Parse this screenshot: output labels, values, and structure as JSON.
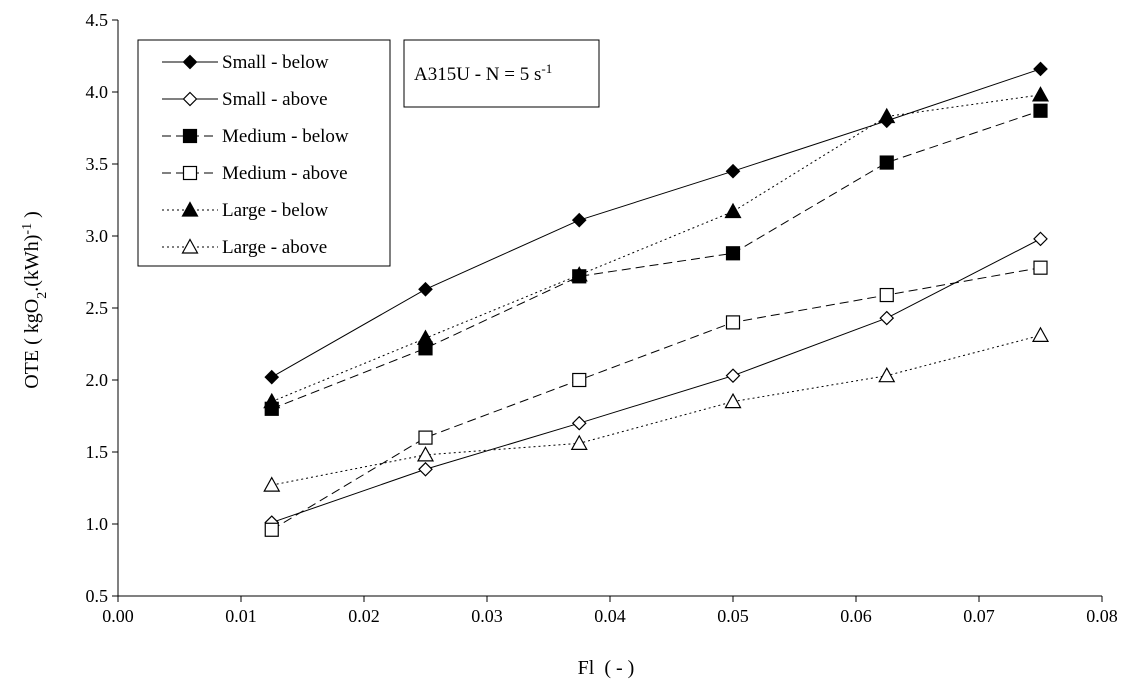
{
  "chart_data": {
    "type": "line",
    "xlabel": "Fl  ( - )",
    "ylabel_main": "OTE  ( kgO",
    "ylabel_sub2": "2",
    "ylabel_mid": ".(kWh)",
    "ylabel_sup": "-1",
    "ylabel_end": " )",
    "xlim": [
      0.0,
      0.08
    ],
    "ylim": [
      0.5,
      4.5
    ],
    "xticks": [
      0.0,
      0.01,
      0.02,
      0.03,
      0.04,
      0.05,
      0.06,
      0.07,
      0.08
    ],
    "yticks": [
      0.5,
      1.0,
      1.5,
      2.0,
      2.5,
      3.0,
      3.5,
      4.0,
      4.5
    ],
    "xtick_labels": [
      "0.00",
      "0.01",
      "0.02",
      "0.03",
      "0.04",
      "0.05",
      "0.06",
      "0.07",
      "0.08"
    ],
    "ytick_labels": [
      "0.5",
      "1.0",
      "1.5",
      "2.0",
      "2.5",
      "3.0",
      "3.5",
      "4.0",
      "4.5"
    ],
    "grid": false,
    "legend_position": "top-left",
    "annotation": {
      "main": "A315U - N = 5 s",
      "sup": "-1"
    },
    "x": [
      0.0125,
      0.025,
      0.0375,
      0.05,
      0.0625,
      0.075
    ],
    "series": [
      {
        "name": "Small - below",
        "marker": "diamond",
        "filled": true,
        "line": "solid",
        "values": [
          2.02,
          2.63,
          3.11,
          3.45,
          3.8,
          4.16
        ]
      },
      {
        "name": "Small - above",
        "marker": "diamond",
        "filled": false,
        "line": "solid",
        "values": [
          1.01,
          1.38,
          1.7,
          2.03,
          2.43,
          2.98
        ]
      },
      {
        "name": "Medium - below",
        "marker": "square",
        "filled": true,
        "line": "dashed",
        "values": [
          1.8,
          2.22,
          2.72,
          2.88,
          3.51,
          3.87
        ]
      },
      {
        "name": "Medium - above",
        "marker": "square",
        "filled": false,
        "line": "dashed",
        "values": [
          0.96,
          1.6,
          2.0,
          2.4,
          2.59,
          2.78
        ]
      },
      {
        "name": "Large - below",
        "marker": "triangle",
        "filled": true,
        "line": "dotted",
        "values": [
          1.85,
          2.29,
          2.73,
          3.17,
          3.83,
          3.98
        ]
      },
      {
        "name": "Large - above",
        "marker": "triangle",
        "filled": false,
        "line": "dotted",
        "values": [
          1.27,
          1.48,
          1.56,
          1.85,
          2.03,
          2.31
        ]
      }
    ]
  }
}
